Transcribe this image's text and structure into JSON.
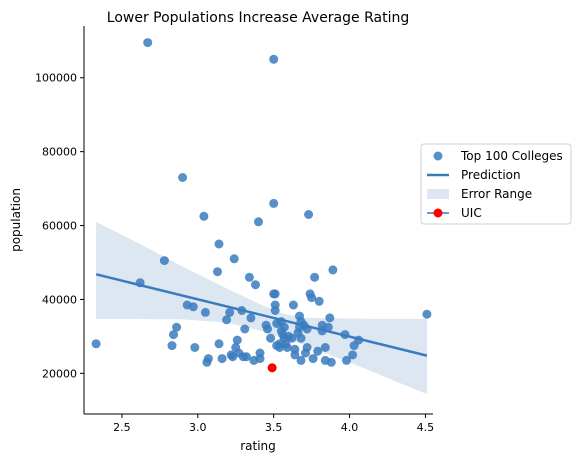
{
  "chart_data": {
    "type": "scatter",
    "title": "Lower Populations Increase Average Rating",
    "xlabel": "rating",
    "ylabel": "population",
    "xlim": [
      2.25,
      4.55
    ],
    "ylim": [
      9000,
      114000
    ],
    "xticks": [
      2.5,
      3.0,
      3.5,
      4.0,
      4.5
    ],
    "xtick_labels": [
      "2.5",
      "3.0",
      "3.5",
      "4.0",
      "4.5"
    ],
    "yticks": [
      20000,
      40000,
      60000,
      80000,
      100000
    ],
    "ytick_labels": [
      "20000",
      "40000",
      "60000",
      "80000",
      "100000"
    ],
    "grid": false,
    "legend_position": "center-right",
    "legend": [
      {
        "label": "Top 100 Colleges",
        "kind": "marker",
        "color": "#3a7bbf"
      },
      {
        "label": "Prediction",
        "kind": "line",
        "color": "#3a7bbf"
      },
      {
        "label": "Error Range",
        "kind": "patch",
        "color": "#dce7f2"
      },
      {
        "label": "UIC",
        "kind": "red-marker",
        "color": "#ff0000"
      }
    ],
    "series": [
      {
        "name": "Top 100 Colleges",
        "color": "#3a7bbf",
        "points": [
          [
            2.33,
            28000
          ],
          [
            2.62,
            44500
          ],
          [
            2.67,
            109500
          ],
          [
            2.78,
            50500
          ],
          [
            2.83,
            27500
          ],
          [
            2.84,
            30500
          ],
          [
            2.86,
            32500
          ],
          [
            2.9,
            73000
          ],
          [
            2.93,
            38500
          ],
          [
            2.97,
            38000
          ],
          [
            2.98,
            27000
          ],
          [
            3.04,
            62500
          ],
          [
            3.05,
            36500
          ],
          [
            3.06,
            23000
          ],
          [
            3.07,
            24000
          ],
          [
            3.13,
            47500
          ],
          [
            3.14,
            55000
          ],
          [
            3.14,
            28000
          ],
          [
            3.16,
            24000
          ],
          [
            3.19,
            34500
          ],
          [
            3.21,
            36500
          ],
          [
            3.22,
            25000
          ],
          [
            3.23,
            24500
          ],
          [
            3.24,
            51000
          ],
          [
            3.25,
            27000
          ],
          [
            3.26,
            29000
          ],
          [
            3.27,
            25500
          ],
          [
            3.29,
            37000
          ],
          [
            3.3,
            24500
          ],
          [
            3.31,
            32000
          ],
          [
            3.32,
            24500
          ],
          [
            3.34,
            46000
          ],
          [
            3.35,
            35000
          ],
          [
            3.37,
            23500
          ],
          [
            3.38,
            44000
          ],
          [
            3.4,
            61000
          ],
          [
            3.41,
            25500
          ],
          [
            3.41,
            24000
          ],
          [
            3.45,
            33000
          ],
          [
            3.46,
            32000
          ],
          [
            3.48,
            29500
          ],
          [
            3.5,
            105000
          ],
          [
            3.5,
            66000
          ],
          [
            3.5,
            41500
          ],
          [
            3.51,
            41500
          ],
          [
            3.51,
            38500
          ],
          [
            3.51,
            37000
          ],
          [
            3.52,
            33500
          ],
          [
            3.52,
            27500
          ],
          [
            3.54,
            27000
          ],
          [
            3.54,
            28000
          ],
          [
            3.55,
            31500
          ],
          [
            3.55,
            34000
          ],
          [
            3.56,
            30500
          ],
          [
            3.57,
            32500
          ],
          [
            3.57,
            29500
          ],
          [
            3.58,
            28000
          ],
          [
            3.59,
            27000
          ],
          [
            3.6,
            30000
          ],
          [
            3.62,
            29500
          ],
          [
            3.63,
            38500
          ],
          [
            3.64,
            25000
          ],
          [
            3.64,
            26500
          ],
          [
            3.66,
            31000
          ],
          [
            3.67,
            35500
          ],
          [
            3.67,
            32500
          ],
          [
            3.68,
            34000
          ],
          [
            3.68,
            29500
          ],
          [
            3.68,
            23500
          ],
          [
            3.7,
            33000
          ],
          [
            3.71,
            25500
          ],
          [
            3.72,
            27000
          ],
          [
            3.72,
            32000
          ],
          [
            3.73,
            63000
          ],
          [
            3.74,
            41500
          ],
          [
            3.75,
            40500
          ],
          [
            3.76,
            24000
          ],
          [
            3.77,
            46000
          ],
          [
            3.79,
            26000
          ],
          [
            3.8,
            39500
          ],
          [
            3.82,
            33000
          ],
          [
            3.82,
            31500
          ],
          [
            3.84,
            23500
          ],
          [
            3.84,
            27000
          ],
          [
            3.86,
            32500
          ],
          [
            3.87,
            35000
          ],
          [
            3.88,
            23000
          ],
          [
            3.89,
            48000
          ],
          [
            3.97,
            30500
          ],
          [
            3.98,
            23500
          ],
          [
            4.02,
            25000
          ],
          [
            4.03,
            27500
          ],
          [
            4.06,
            29000
          ],
          [
            4.51,
            36000
          ]
        ]
      },
      {
        "name": "UIC",
        "color": "#ff0000",
        "points": [
          [
            3.49,
            21500
          ]
        ]
      }
    ],
    "prediction": {
      "color": "#3a7bbf",
      "x": [
        2.33,
        4.51
      ],
      "y": [
        46800,
        24800
      ]
    },
    "error_range": {
      "color": "#dce7f2",
      "x": [
        2.33,
        2.6,
        2.9,
        3.2,
        3.4,
        3.55,
        3.7,
        3.9,
        4.1,
        4.3,
        4.51
      ],
      "lower": [
        34700,
        34700,
        34600,
        33700,
        31700,
        29700,
        27700,
        24500,
        21300,
        17900,
        14400
      ],
      "upper": [
        61000,
        55400,
        48900,
        42800,
        38900,
        36300,
        35000,
        34900,
        34800,
        34800,
        34800
      ]
    }
  }
}
